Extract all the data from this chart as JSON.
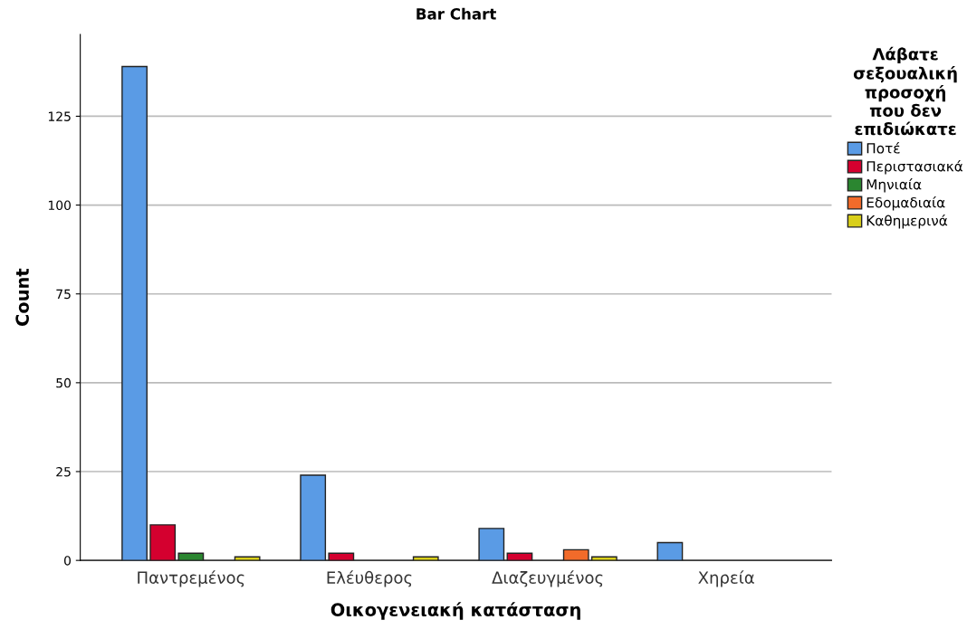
{
  "chart_data": {
    "type": "bar",
    "title": "Bar Chart",
    "xlabel": "Οικογενειακή κατάσταση",
    "ylabel": "Count",
    "legend_title": "Λάβατε\nσεξουαλική\nπροσοχή\nπου δεν\nεπιδιώκατε",
    "categories": [
      "Παντρεμένος",
      "Ελέυθερος",
      "Διαζευγμένος",
      "Χηρεία"
    ],
    "series": [
      {
        "name": "Ποτέ",
        "color": "#5a9be5",
        "values": [
          139,
          24,
          9,
          5
        ]
      },
      {
        "name": "Περιστασιακά",
        "color": "#d4002f",
        "values": [
          10,
          2,
          2,
          null
        ]
      },
      {
        "name": "Μηνιαία",
        "color": "#2b8630",
        "values": [
          2,
          null,
          null,
          null
        ]
      },
      {
        "name": "Εδομαδιαία",
        "color": "#f26b2a",
        "values": [
          null,
          null,
          3,
          null
        ]
      },
      {
        "name": "Καθημερινά",
        "color": "#d9cf1a",
        "values": [
          1,
          1,
          1,
          null
        ]
      }
    ],
    "ylim": [
      0,
      148
    ],
    "yticks": [
      0,
      25,
      50,
      75,
      100,
      125
    ],
    "grid": "y",
    "legend": "right"
  }
}
